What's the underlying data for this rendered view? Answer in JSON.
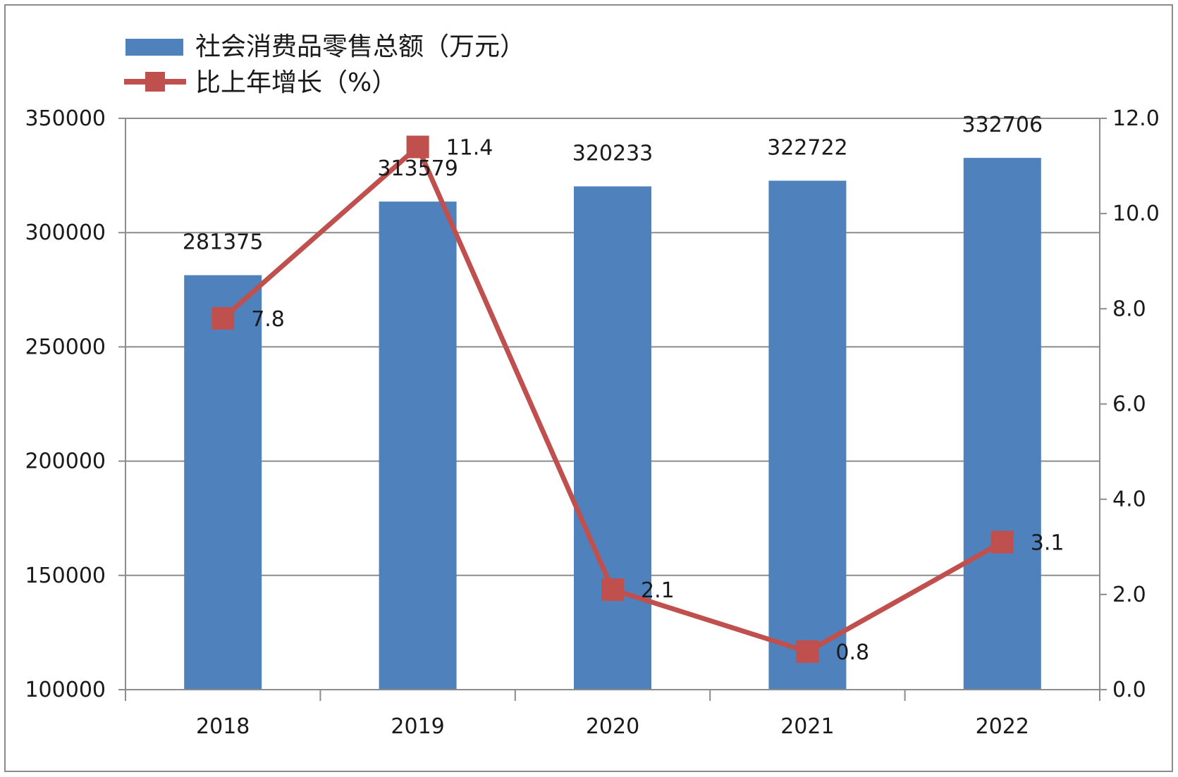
{
  "chart_data": {
    "type": "bar",
    "categories": [
      "2018",
      "2019",
      "2020",
      "2021",
      "2022"
    ],
    "series": [
      {
        "name": "社会消费品零售总额（万元）",
        "type": "bar",
        "axis": "left",
        "color": "#4f81bd",
        "values": [
          281375,
          313579,
          320233,
          322722,
          332706
        ]
      },
      {
        "name": "比上年增长（%）",
        "type": "line",
        "axis": "right",
        "color": "#c0504d",
        "marker": "square",
        "values": [
          7.8,
          11.4,
          2.1,
          0.8,
          3.1
        ]
      }
    ],
    "y_left": {
      "ylim": [
        100000,
        350000
      ],
      "ticks": [
        "100000",
        "150000",
        "200000",
        "250000",
        "300000",
        "350000"
      ]
    },
    "y_right": {
      "ylim": [
        0,
        12
      ],
      "ticks": [
        "0.0",
        "2.0",
        "4.0",
        "6.0",
        "8.0",
        "10.0",
        "12.0"
      ]
    },
    "bar_labels": [
      "281375",
      "313579",
      "320233",
      "322722",
      "332706"
    ],
    "line_labels": [
      "7.8",
      "11.4",
      "2.1",
      "0.8",
      "3.1"
    ],
    "grid": true,
    "legend_position": "top-left"
  }
}
